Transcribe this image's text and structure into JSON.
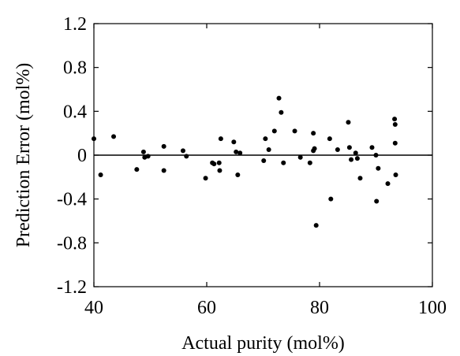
{
  "chart_data": {
    "type": "scatter",
    "title": "",
    "xlabel": "Actual purity (mol%)",
    "ylabel": "Prediction Error (mol%)",
    "xlim": [
      40,
      100
    ],
    "ylim": [
      -1.2,
      1.2
    ],
    "xticks": [
      40,
      60,
      80,
      100
    ],
    "yticks": [
      -1.2,
      -0.8,
      -0.4,
      0,
      0.4,
      0.8,
      1.2
    ],
    "xtick_labels": [
      "40",
      "60",
      "80",
      "100"
    ],
    "ytick_labels": [
      "-1.2",
      "-0.8",
      "-0.4",
      "0",
      "0.4",
      "0.8",
      "1.2"
    ],
    "grid": false,
    "reference_line_y": 0,
    "series": [
      {
        "color": "#000000",
        "points": [
          [
            40.0,
            0.15
          ],
          [
            41.2,
            -0.18
          ],
          [
            43.5,
            0.17
          ],
          [
            47.6,
            -0.13
          ],
          [
            48.8,
            0.03
          ],
          [
            49.0,
            -0.02
          ],
          [
            49.6,
            -0.01
          ],
          [
            52.4,
            0.08
          ],
          [
            52.4,
            -0.14
          ],
          [
            55.8,
            0.04
          ],
          [
            56.4,
            -0.01
          ],
          [
            59.8,
            -0.21
          ],
          [
            61.0,
            -0.07
          ],
          [
            61.3,
            -0.08
          ],
          [
            62.2,
            -0.07
          ],
          [
            62.3,
            -0.14
          ],
          [
            62.5,
            0.15
          ],
          [
            64.8,
            0.12
          ],
          [
            65.2,
            0.03
          ],
          [
            65.5,
            -0.18
          ],
          [
            65.9,
            0.02
          ],
          [
            70.1,
            -0.05
          ],
          [
            70.4,
            0.15
          ],
          [
            71.0,
            0.05
          ],
          [
            72.0,
            0.22
          ],
          [
            72.8,
            0.52
          ],
          [
            73.2,
            0.39
          ],
          [
            73.6,
            -0.07
          ],
          [
            75.6,
            0.22
          ],
          [
            76.6,
            -0.02
          ],
          [
            78.3,
            -0.07
          ],
          [
            78.9,
            0.04
          ],
          [
            78.9,
            0.2
          ],
          [
            79.1,
            0.06
          ],
          [
            79.4,
            -0.64
          ],
          [
            81.8,
            0.15
          ],
          [
            82.0,
            -0.4
          ],
          [
            83.2,
            0.05
          ],
          [
            85.1,
            0.3
          ],
          [
            85.3,
            0.07
          ],
          [
            85.6,
            -0.04
          ],
          [
            86.4,
            0.02
          ],
          [
            86.7,
            -0.03
          ],
          [
            87.2,
            -0.21
          ],
          [
            89.3,
            0.07
          ],
          [
            90.0,
            0.0
          ],
          [
            90.1,
            -0.42
          ],
          [
            90.4,
            -0.12
          ],
          [
            92.1,
            -0.26
          ],
          [
            93.3,
            0.33
          ],
          [
            93.4,
            0.28
          ],
          [
            93.4,
            0.11
          ],
          [
            93.5,
            -0.18
          ]
        ]
      }
    ]
  }
}
